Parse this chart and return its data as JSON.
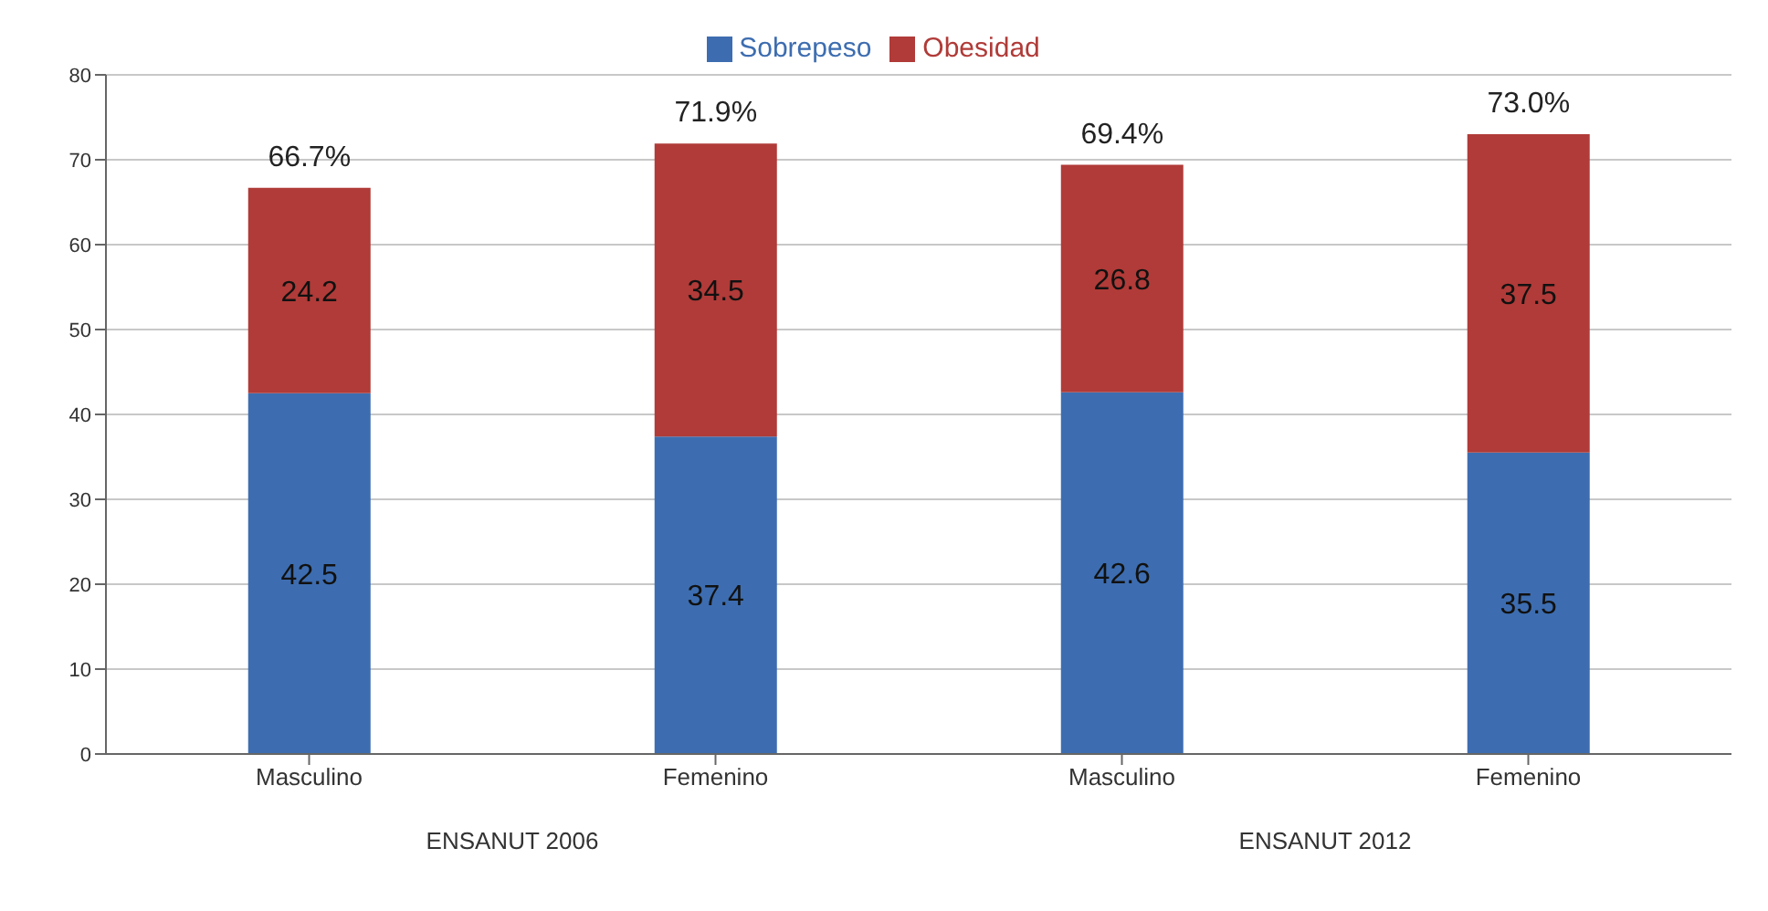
{
  "chart_data": {
    "type": "bar",
    "stacked": true,
    "categories": [
      "Masculino",
      "Femenino",
      "Masculino",
      "Femenino"
    ],
    "series": [
      {
        "name": "Sobrepeso",
        "color": "#3d6db0",
        "values": [
          42.5,
          37.4,
          42.6,
          35.5
        ]
      },
      {
        "name": "Obesidad",
        "color": "#b03b38",
        "values": [
          24.2,
          34.5,
          26.8,
          37.5
        ]
      }
    ],
    "totals": [
      "66.7%",
      "71.9%",
      "69.4%",
      "73.0%"
    ],
    "data_labels": true,
    "annotations": [
      "ENSANUT 2006",
      "ENSANUT 2012"
    ],
    "ylim": [
      0,
      80
    ],
    "yticks": [
      0,
      10,
      20,
      30,
      40,
      50,
      60,
      70,
      80
    ],
    "grid": "y",
    "legend": "top"
  }
}
